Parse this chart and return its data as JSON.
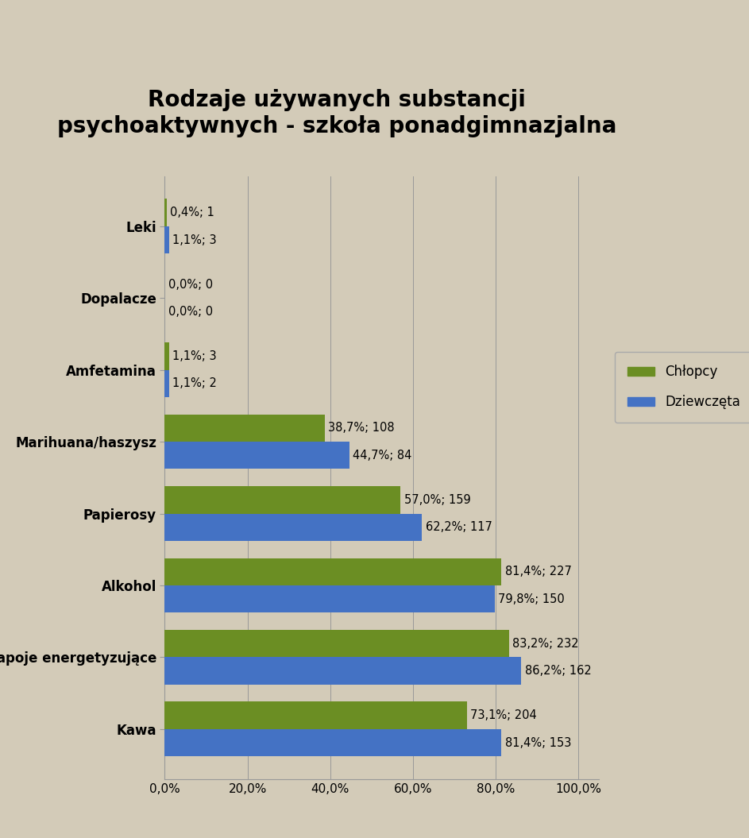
{
  "title": "Rodzaje używanych substancji\npsychoaktywnych - szkoła ponadgimnazjalna",
  "categories": [
    "Kawa",
    "Napoje energetyzujące",
    "Alkohol",
    "Papierosy",
    "Marihuana/haszysz",
    "Amfetamina",
    "Dopalacze",
    "Leki"
  ],
  "chlopcy_pct": [
    73.1,
    83.2,
    81.4,
    57.0,
    38.7,
    1.1,
    0.0,
    0.4
  ],
  "chlopcy_n": [
    204,
    232,
    227,
    159,
    108,
    3,
    0,
    1
  ],
  "dziewczeta_pct": [
    81.4,
    86.2,
    79.8,
    62.2,
    44.7,
    1.1,
    0.0,
    1.1
  ],
  "dziewczeta_n": [
    153,
    162,
    150,
    117,
    84,
    2,
    0,
    3
  ],
  "color_chlopcy": "#6b8e23",
  "color_dziewczeta": "#4472c4",
  "background_color": "#d3cbb8",
  "xlim": [
    0,
    105
  ],
  "xticks": [
    0,
    20,
    40,
    60,
    80,
    100
  ],
  "xticklabels": [
    "0,0%",
    "20,0%",
    "40,0%",
    "60,0%",
    "80,0%",
    "100,0%"
  ],
  "legend_chlopcy": "Chłopcy",
  "legend_dziewczeta": "Dziewczęta",
  "title_fontsize": 20,
  "label_fontsize": 12,
  "tick_fontsize": 11,
  "bar_height": 0.38,
  "annotation_fontsize": 10.5
}
